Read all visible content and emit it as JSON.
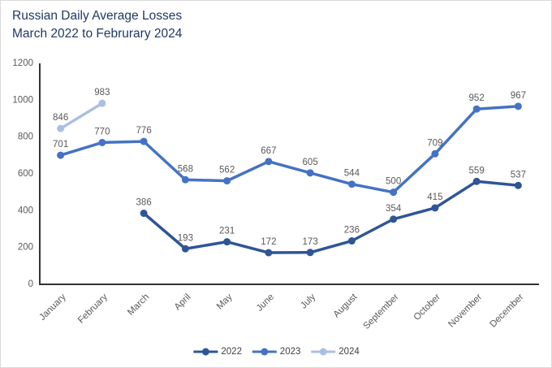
{
  "window": {
    "background": "#ffffff",
    "border_color": "#d9d9d9"
  },
  "header": {
    "title_line1": "Russian Daily Average Losses",
    "title_line2": "March 2022 to Februrary 2024",
    "title_color": "#203864"
  },
  "chart_data": {
    "type": "line",
    "title": "Russian Daily Average Losses March 2022 to Februrary 2024",
    "categories": [
      "January",
      "February",
      "March",
      "April",
      "May",
      "June",
      "July",
      "August",
      "September",
      "October",
      "November",
      "December"
    ],
    "series": [
      {
        "name": "2022",
        "color": "#2F5597",
        "values": [
          null,
          null,
          386,
          193,
          231,
          172,
          173,
          236,
          354,
          415,
          559,
          537
        ]
      },
      {
        "name": "2023",
        "color": "#4472C4",
        "values": [
          701,
          770,
          776,
          568,
          562,
          667,
          605,
          544,
          500,
          709,
          952,
          967
        ]
      },
      {
        "name": "2024",
        "color": "#ABBFE4",
        "values": [
          846,
          983,
          null,
          null,
          null,
          null,
          null,
          null,
          null,
          null,
          null,
          null
        ]
      }
    ],
    "xlabel": "",
    "ylabel": "",
    "ylim": [
      0,
      1200
    ],
    "yticks": [
      0,
      200,
      400,
      600,
      800,
      1000,
      1200
    ],
    "grid": false,
    "data_labels": true,
    "legend": {
      "position": "bottom",
      "entries": [
        "2022",
        "2023",
        "2024"
      ]
    },
    "style": {
      "axis_color": "#333333",
      "tick_label_color": "#595959",
      "data_label_color": "#595959",
      "legend_text_color": "#404040",
      "line_width": 3.5,
      "marker_radius": 4.5
    }
  }
}
